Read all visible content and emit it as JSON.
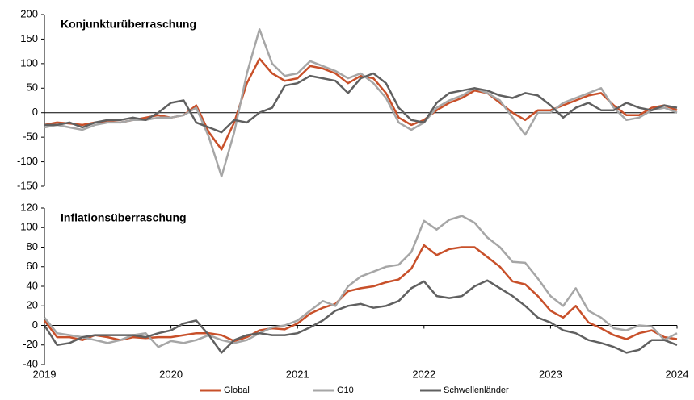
{
  "chart_data": [
    {
      "type": "line",
      "title": "Konjunkturüberraschung",
      "x": [
        2019,
        2019.1,
        2019.2,
        2019.3,
        2019.4,
        2019.5,
        2019.6,
        2019.7,
        2019.8,
        2019.9,
        2020,
        2020.1,
        2020.2,
        2020.3,
        2020.4,
        2020.5,
        2020.6,
        2020.7,
        2020.8,
        2020.9,
        2021,
        2021.1,
        2021.2,
        2021.3,
        2021.4,
        2021.5,
        2021.6,
        2021.7,
        2021.8,
        2021.9,
        2022,
        2022.1,
        2022.2,
        2022.3,
        2022.4,
        2022.5,
        2022.6,
        2022.7,
        2022.8,
        2022.9,
        2023,
        2023.1,
        2023.2,
        2023.3,
        2023.4,
        2023.5,
        2023.6,
        2023.7,
        2023.8,
        2023.9,
        2024
      ],
      "series": [
        {
          "color": "#c8502a",
          "values": [
            -25,
            -20,
            -22,
            -25,
            -20,
            -18,
            -20,
            -15,
            -10,
            -5,
            -10,
            -5,
            15,
            -40,
            -75,
            -20,
            60,
            110,
            80,
            65,
            70,
            95,
            90,
            80,
            60,
            75,
            70,
            40,
            -10,
            -25,
            -15,
            5,
            20,
            30,
            45,
            40,
            20,
            0,
            -15,
            5,
            5,
            15,
            25,
            35,
            40,
            15,
            -5,
            -5,
            10,
            15,
            5
          ]
        },
        {
          "color": "#a6a6a6",
          "values": [
            -30,
            -25,
            -30,
            -35,
            -25,
            -20,
            -20,
            -15,
            -15,
            -10,
            -10,
            -5,
            10,
            -50,
            -130,
            -40,
            80,
            170,
            100,
            75,
            80,
            105,
            95,
            85,
            70,
            80,
            60,
            30,
            -20,
            -35,
            -20,
            10,
            25,
            35,
            50,
            40,
            25,
            -10,
            -45,
            0,
            0,
            20,
            30,
            40,
            50,
            10,
            -15,
            -10,
            5,
            10,
            0
          ]
        },
        {
          "color": "#606060",
          "values": [
            -25,
            -25,
            -20,
            -30,
            -20,
            -15,
            -15,
            -10,
            -15,
            0,
            20,
            25,
            -20,
            -30,
            -40,
            -15,
            -20,
            0,
            10,
            55,
            60,
            75,
            70,
            65,
            40,
            70,
            80,
            60,
            10,
            -15,
            -20,
            20,
            40,
            45,
            50,
            45,
            35,
            30,
            40,
            35,
            15,
            -10,
            10,
            20,
            5,
            5,
            20,
            10,
            5,
            15,
            10
          ]
        }
      ],
      "ylim": [
        -150,
        200
      ],
      "yticks": [
        -150,
        -100,
        -50,
        0,
        50,
        100,
        150,
        200
      ]
    },
    {
      "type": "line",
      "title": "Inflationsüberraschung",
      "x": [
        2019,
        2019.1,
        2019.2,
        2019.3,
        2019.4,
        2019.5,
        2019.6,
        2019.7,
        2019.8,
        2019.9,
        2020,
        2020.1,
        2020.2,
        2020.3,
        2020.4,
        2020.5,
        2020.6,
        2020.7,
        2020.8,
        2020.9,
        2021,
        2021.1,
        2021.2,
        2021.3,
        2021.4,
        2021.5,
        2021.6,
        2021.7,
        2021.8,
        2021.9,
        2022,
        2022.1,
        2022.2,
        2022.3,
        2022.4,
        2022.5,
        2022.6,
        2022.7,
        2022.8,
        2022.9,
        2023,
        2023.1,
        2023.2,
        2023.3,
        2023.4,
        2023.5,
        2023.6,
        2023.7,
        2023.8,
        2023.9,
        2024
      ],
      "series": [
        {
          "name": "Global",
          "color": "#c8502a",
          "values": [
            5,
            -12,
            -12,
            -15,
            -10,
            -12,
            -15,
            -12,
            -13,
            -12,
            -12,
            -10,
            -8,
            -8,
            -10,
            -16,
            -12,
            -5,
            -3,
            -4,
            2,
            12,
            18,
            22,
            35,
            38,
            40,
            44,
            47,
            58,
            82,
            72,
            78,
            80,
            80,
            70,
            60,
            45,
            42,
            30,
            15,
            8,
            20,
            3,
            -3,
            -10,
            -14,
            -8,
            -5,
            -12,
            -14
          ]
        },
        {
          "name": "G10",
          "color": "#a6a6a6",
          "values": [
            8,
            -8,
            -10,
            -12,
            -15,
            -18,
            -15,
            -10,
            -8,
            -22,
            -16,
            -18,
            -15,
            -10,
            -15,
            -18,
            -15,
            -8,
            -2,
            0,
            5,
            15,
            25,
            20,
            40,
            50,
            55,
            60,
            62,
            75,
            107,
            98,
            108,
            112,
            105,
            90,
            80,
            65,
            64,
            48,
            30,
            20,
            38,
            15,
            8,
            -3,
            -5,
            0,
            -1,
            -15,
            -8
          ]
        },
        {
          "name": "Schwellenländer",
          "color": "#606060",
          "values": [
            0,
            -20,
            -18,
            -12,
            -10,
            -10,
            -10,
            -10,
            -12,
            -8,
            -5,
            2,
            5,
            -10,
            -28,
            -15,
            -10,
            -8,
            -10,
            -10,
            -8,
            -2,
            5,
            15,
            20,
            22,
            18,
            20,
            25,
            38,
            45,
            30,
            28,
            30,
            40,
            46,
            38,
            30,
            20,
            8,
            3,
            -5,
            -8,
            -15,
            -18,
            -22,
            -28,
            -25,
            -15,
            -15,
            -20
          ]
        }
      ],
      "ylim": [
        -40,
        120
      ],
      "yticks": [
        -40,
        -20,
        0,
        20,
        40,
        60,
        80,
        100,
        120
      ],
      "xlim": [
        2019,
        2024
      ],
      "xticks": [
        2019,
        2020,
        2021,
        2022,
        2023,
        2024
      ]
    }
  ]
}
